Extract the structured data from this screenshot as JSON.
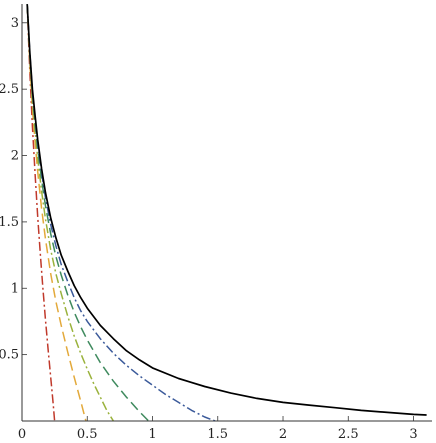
{
  "chart_data": {
    "type": "line",
    "title": "",
    "xlabel": "",
    "ylabel": "",
    "xlim": [
      0,
      3.14159
    ],
    "ylim": [
      0,
      3.14159
    ],
    "grid": false,
    "legend": "none",
    "x_ticks": [
      {
        "value": 0,
        "label": "0"
      },
      {
        "value": 0.5,
        "label": "0.5"
      },
      {
        "value": 1,
        "label": "1"
      },
      {
        "value": 1.5,
        "label": "1.5"
      },
      {
        "value": 2,
        "label": "2"
      },
      {
        "value": 2.5,
        "label": "2.5"
      },
      {
        "value": 3,
        "label": "3"
      }
    ],
    "y_ticks": [
      {
        "value": 0.5,
        "label": "0.5"
      },
      {
        "value": 1,
        "label": "1"
      },
      {
        "value": 1.5,
        "label": "1.5"
      },
      {
        "value": 2,
        "label": "2"
      },
      {
        "value": 2.5,
        "label": "2.5"
      },
      {
        "value": 3,
        "label": "3"
      }
    ],
    "series": [
      {
        "color": "#000000",
        "dash": "solid",
        "x": [
          0.04,
          0.05,
          0.06,
          0.08,
          0.1,
          0.12,
          0.15,
          0.18,
          0.22,
          0.26,
          0.3,
          0.35,
          0.4,
          0.45,
          0.5,
          0.6,
          0.7,
          0.8,
          0.9,
          1.0,
          1.2,
          1.4,
          1.6,
          1.8,
          2.0,
          2.2,
          2.4,
          2.6,
          2.8,
          3.0,
          3.1
        ],
        "y": [
          3.14,
          2.96,
          2.78,
          2.5,
          2.3,
          2.12,
          1.9,
          1.72,
          1.53,
          1.38,
          1.25,
          1.13,
          1.02,
          0.93,
          0.85,
          0.72,
          0.62,
          0.53,
          0.46,
          0.4,
          0.32,
          0.26,
          0.21,
          0.17,
          0.14,
          0.12,
          0.1,
          0.08,
          0.065,
          0.05,
          0.045
        ]
      },
      {
        "color": "#3b5a9a",
        "dash": "dashdot",
        "x": [
          0.04,
          0.06,
          0.08,
          0.1,
          0.12,
          0.15,
          0.18,
          0.22,
          0.26,
          0.3,
          0.35,
          0.4,
          0.45,
          0.5,
          0.6,
          0.7,
          0.8,
          0.9,
          1.0,
          1.1,
          1.2,
          1.3,
          1.4,
          1.48
        ],
        "y": [
          3.14,
          2.78,
          2.48,
          2.28,
          2.09,
          1.87,
          1.68,
          1.48,
          1.32,
          1.18,
          1.05,
          0.93,
          0.83,
          0.75,
          0.62,
          0.51,
          0.42,
          0.34,
          0.27,
          0.2,
          0.14,
          0.08,
          0.03,
          0.0
        ]
      },
      {
        "color": "#3f8a5e",
        "dash": "dashed",
        "x": [
          0.04,
          0.06,
          0.08,
          0.1,
          0.12,
          0.15,
          0.18,
          0.22,
          0.26,
          0.3,
          0.35,
          0.4,
          0.45,
          0.5,
          0.6,
          0.7,
          0.8,
          0.9,
          0.97
        ],
        "y": [
          3.14,
          2.76,
          2.46,
          2.24,
          2.05,
          1.82,
          1.62,
          1.41,
          1.24,
          1.1,
          0.95,
          0.82,
          0.71,
          0.61,
          0.44,
          0.3,
          0.18,
          0.07,
          0.0
        ]
      },
      {
        "color": "#9ab23c",
        "dash": "dashdot",
        "x": [
          0.04,
          0.06,
          0.08,
          0.1,
          0.12,
          0.15,
          0.18,
          0.22,
          0.26,
          0.3,
          0.35,
          0.4,
          0.45,
          0.5,
          0.55,
          0.6,
          0.65,
          0.7
        ],
        "y": [
          3.14,
          2.74,
          2.42,
          2.18,
          1.98,
          1.73,
          1.52,
          1.29,
          1.11,
          0.96,
          0.79,
          0.64,
          0.51,
          0.39,
          0.28,
          0.18,
          0.08,
          0.0
        ]
      },
      {
        "color": "#e3a93a",
        "dash": "dashed",
        "x": [
          0.04,
          0.06,
          0.08,
          0.1,
          0.12,
          0.15,
          0.18,
          0.22,
          0.26,
          0.3,
          0.35,
          0.4,
          0.45,
          0.49
        ],
        "y": [
          3.14,
          2.7,
          2.36,
          2.1,
          1.88,
          1.6,
          1.37,
          1.11,
          0.9,
          0.72,
          0.52,
          0.33,
          0.15,
          0.0
        ]
      },
      {
        "color": "#c0392b",
        "dash": "dashdot",
        "x": [
          0.04,
          0.05,
          0.06,
          0.08,
          0.1,
          0.12,
          0.14,
          0.16,
          0.18,
          0.2,
          0.22,
          0.24,
          0.25
        ],
        "y": [
          3.14,
          2.88,
          2.64,
          2.22,
          1.86,
          1.54,
          1.26,
          1.0,
          0.76,
          0.54,
          0.33,
          0.12,
          0.0
        ]
      }
    ]
  }
}
